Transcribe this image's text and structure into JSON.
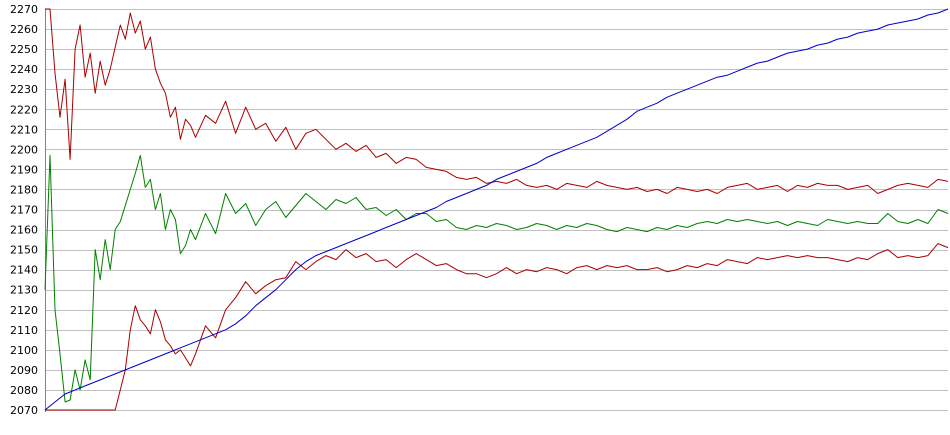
{
  "chart_data": {
    "type": "line",
    "title": "",
    "xlabel": "",
    "ylabel": "",
    "ylim": [
      2070,
      2270
    ],
    "y_ticks": [
      2070,
      2080,
      2090,
      2100,
      2110,
      2120,
      2130,
      2140,
      2150,
      2160,
      2170,
      2180,
      2190,
      2200,
      2210,
      2220,
      2230,
      2240,
      2250,
      2260,
      2270
    ],
    "y_tick_labels": [
      "2070",
      "2080",
      "2090",
      "2100",
      "2110",
      "2120",
      "2130",
      "2140",
      "2150",
      "2160",
      "2170",
      "2180",
      "2190",
      "2200",
      "2210",
      "2220",
      "2230",
      "2240",
      "2250",
      "2260",
      "2270"
    ],
    "xlim": [
      0,
      180
    ],
    "grid": "horizontal",
    "legend": "none",
    "x": [
      0,
      1,
      2,
      3,
      4,
      5,
      6,
      7,
      8,
      9,
      10,
      11,
      12,
      13,
      14,
      15,
      16,
      17,
      18,
      19,
      20,
      21,
      22,
      23,
      24,
      25,
      26,
      27,
      28,
      29,
      30,
      32,
      34,
      36,
      38,
      40,
      42,
      44,
      46,
      48,
      50,
      52,
      54,
      56,
      58,
      60,
      62,
      64,
      66,
      68,
      70,
      72,
      74,
      76,
      78,
      80,
      82,
      84,
      86,
      88,
      90,
      92,
      94,
      96,
      98,
      100,
      102,
      104,
      106,
      108,
      110,
      112,
      114,
      116,
      118,
      120,
      122,
      124,
      126,
      128,
      130,
      132,
      134,
      136,
      138,
      140,
      142,
      144,
      146,
      148,
      150,
      152,
      154,
      156,
      158,
      160,
      162,
      164,
      166,
      168,
      170,
      172,
      174,
      176,
      178,
      180
    ],
    "series": [
      {
        "color": "#aa0000",
        "values": [
          2270,
          2270,
          2238,
          2216,
          2235,
          2195,
          2250,
          2262,
          2236,
          2248,
          2228,
          2244,
          2232,
          2240,
          2251,
          2262,
          2255,
          2268,
          2258,
          2264,
          2250,
          2256,
          2240,
          2233,
          2228,
          2216,
          2221,
          2205,
          2215,
          2212,
          2206,
          2217,
          2213,
          2224,
          2208,
          2221,
          2210,
          2213,
          2204,
          2211,
          2200,
          2208,
          2210,
          2205,
          2200,
          2203,
          2199,
          2202,
          2196,
          2198,
          2193,
          2196,
          2195,
          2191,
          2190,
          2189,
          2186,
          2185,
          2186,
          2183,
          2184,
          2183,
          2185,
          2182,
          2181,
          2182,
          2180,
          2183,
          2182,
          2181,
          2184,
          2182,
          2181,
          2180,
          2181,
          2179,
          2180,
          2178,
          2181,
          2180,
          2179,
          2180,
          2178,
          2181,
          2182,
          2183,
          2180,
          2181,
          2182,
          2179,
          2182,
          2181,
          2183,
          2182,
          2182,
          2180,
          2181,
          2182,
          2178,
          2180,
          2182,
          2183,
          2182,
          2181,
          2185,
          2184
        ]
      },
      {
        "color": "#008000",
        "values": [
          2130,
          2197,
          2120,
          2098,
          2074,
          2075,
          2090,
          2080,
          2095,
          2085,
          2150,
          2135,
          2155,
          2140,
          2160,
          2164,
          2172,
          2180,
          2188,
          2197,
          2181,
          2185,
          2170,
          2178,
          2160,
          2170,
          2165,
          2148,
          2152,
          2160,
          2155,
          2168,
          2158,
          2178,
          2168,
          2173,
          2162,
          2170,
          2174,
          2166,
          2172,
          2178,
          2174,
          2170,
          2175,
          2173,
          2176,
          2170,
          2171,
          2167,
          2170,
          2165,
          2168,
          2168,
          2164,
          2165,
          2161,
          2160,
          2162,
          2161,
          2163,
          2162,
          2160,
          2161,
          2163,
          2162,
          2160,
          2162,
          2161,
          2163,
          2162,
          2160,
          2159,
          2161,
          2160,
          2159,
          2161,
          2160,
          2162,
          2161,
          2163,
          2164,
          2163,
          2165,
          2164,
          2165,
          2164,
          2163,
          2164,
          2162,
          2164,
          2163,
          2162,
          2165,
          2164,
          2163,
          2164,
          2163,
          2163,
          2168,
          2164,
          2163,
          2165,
          2163,
          2170,
          2168
        ]
      },
      {
        "color": "#aa0000",
        "values": [
          2070,
          2070,
          2070,
          2070,
          2070,
          2070,
          2070,
          2070,
          2070,
          2070,
          2070,
          2070,
          2070,
          2070,
          2070,
          2080,
          2090,
          2110,
          2122,
          2115,
          2112,
          2108,
          2120,
          2114,
          2105,
          2102,
          2098,
          2100,
          2096,
          2092,
          2098,
          2112,
          2106,
          2120,
          2126,
          2134,
          2128,
          2132,
          2135,
          2136,
          2144,
          2140,
          2144,
          2147,
          2145,
          2150,
          2146,
          2148,
          2144,
          2145,
          2141,
          2145,
          2148,
          2145,
          2142,
          2143,
          2140,
          2138,
          2138,
          2136,
          2138,
          2141,
          2138,
          2140,
          2139,
          2141,
          2140,
          2138,
          2141,
          2142,
          2140,
          2142,
          2141,
          2142,
          2140,
          2140,
          2141,
          2139,
          2140,
          2142,
          2141,
          2143,
          2142,
          2145,
          2144,
          2143,
          2146,
          2145,
          2146,
          2147,
          2146,
          2147,
          2146,
          2146,
          2145,
          2144,
          2146,
          2145,
          2148,
          2150,
          2146,
          2147,
          2146,
          2147,
          2153,
          2151
        ]
      },
      {
        "color": "#0000cc",
        "values": [
          2070,
          2072,
          2074,
          2076,
          2078,
          2079,
          2080,
          2081,
          2082,
          2083,
          2084,
          2085,
          2086,
          2087,
          2088,
          2089,
          2090,
          2091,
          2092,
          2093,
          2094,
          2095,
          2096,
          2097,
          2098,
          2099,
          2100,
          2101,
          2102,
          2103,
          2104,
          2106,
          2108,
          2110,
          2113,
          2117,
          2122,
          2126,
          2130,
          2135,
          2140,
          2144,
          2147,
          2149,
          2151,
          2153,
          2155,
          2157,
          2159,
          2161,
          2163,
          2165,
          2167,
          2169,
          2171,
          2174,
          2176,
          2178,
          2180,
          2182,
          2185,
          2187,
          2189,
          2191,
          2193,
          2196,
          2198,
          2200,
          2202,
          2204,
          2206,
          2209,
          2212,
          2215,
          2219,
          2221,
          2223,
          2226,
          2228,
          2230,
          2232,
          2234,
          2236,
          2237,
          2239,
          2241,
          2243,
          2244,
          2246,
          2248,
          2249,
          2250,
          2252,
          2253,
          2255,
          2256,
          2258,
          2259,
          2260,
          2262,
          2263,
          2264,
          2265,
          2267,
          2268,
          2270
        ]
      }
    ]
  }
}
